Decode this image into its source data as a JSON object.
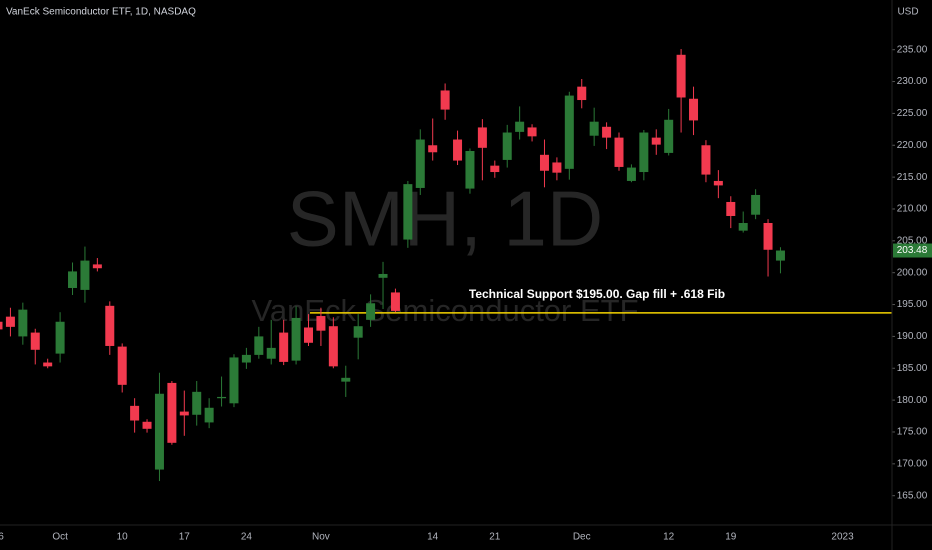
{
  "chart_data": {
    "type": "candlestick",
    "title": "VanEck Semiconductor ETF, 1D, NASDAQ",
    "currency": "USD",
    "watermark": {
      "symbol": "SMH, 1D",
      "description": "VanEck Semiconductor ETF"
    },
    "categories": [
      "6",
      null,
      null,
      null,
      null,
      "Oct",
      null,
      null,
      null,
      null,
      "10",
      null,
      null,
      null,
      null,
      "17",
      null,
      null,
      null,
      null,
      "24",
      null,
      null,
      null,
      null,
      null,
      "Nov",
      null,
      null,
      null,
      null,
      null,
      null,
      null,
      null,
      "14",
      null,
      null,
      null,
      null,
      "21",
      null,
      null,
      null,
      null,
      null,
      null,
      "Dec",
      null,
      null,
      null,
      null,
      null,
      null,
      "12",
      null,
      null,
      null,
      null,
      "19",
      null,
      null,
      null,
      null,
      null,
      null,
      null,
      null,
      "2023"
    ],
    "open": [
      192.3,
      193.1,
      190,
      190.6,
      185.9,
      187.3,
      197.6,
      197.3,
      201.3,
      194.8,
      188.4,
      179.1,
      176.6,
      169.1,
      182.7,
      178.2,
      177.7,
      176.5,
      180.3,
      179.5,
      185.9,
      187.1,
      186.5,
      190.6,
      186.2,
      191.4,
      193.2,
      191.6,
      182.9,
      189.8,
      192.6,
      199.2,
      196.9,
      205.2,
      213.3,
      220,
      228.6,
      220.9,
      213.2,
      222.8,
      216.8,
      217.7,
      222.1,
      222.8,
      218.5,
      217.3,
      216.3,
      229.2,
      221.5,
      222.9,
      221.2,
      214.4,
      215.8,
      221.2,
      218.8,
      234.2,
      227.3,
      220,
      214.4,
      211.1,
      206.6,
      209.1,
      207.8,
      201.9,
      null,
      null,
      null,
      null,
      null
    ],
    "high": [
      193,
      194.5,
      195.3,
      191.2,
      186.5,
      193.8,
      201.6,
      204.1,
      202.3,
      195.5,
      188.9,
      180.3,
      177.0,
      184.3,
      183.0,
      181.5,
      183.0,
      180.3,
      183.7,
      187.2,
      188.2,
      191.5,
      192.6,
      192.6,
      194.7,
      193.5,
      194.5,
      193.0,
      185.4,
      193.5,
      196.6,
      201.7,
      197.5,
      214.4,
      222.5,
      224.2,
      229.7,
      222.3,
      219.5,
      224.1,
      217.6,
      223.2,
      226.1,
      223.3,
      220.9,
      218.1,
      228.4,
      230.4,
      225.9,
      223.6,
      222,
      217,
      222.4,
      222.5,
      225.7,
      235.1,
      229.2,
      220.8,
      216.1,
      212,
      209.6,
      213.1,
      208.4,
      204,
      null,
      null,
      null,
      null,
      null
    ],
    "low": [
      190.2,
      190,
      188.7,
      185.6,
      185.0,
      185.9,
      196.5,
      195.3,
      200.2,
      187.1,
      181.2,
      174.9,
      174.9,
      167.3,
      173.0,
      174.4,
      176.0,
      175.6,
      179,
      178.9,
      184.9,
      186.5,
      185.6,
      185.5,
      185.6,
      188.5,
      188.5,
      185.0,
      180.5,
      186.4,
      191.5,
      194.3,
      193.8,
      203.9,
      212.2,
      217.6,
      224,
      216.9,
      212.4,
      214.5,
      214.9,
      216.5,
      220.9,
      220.6,
      213.4,
      214.5,
      214.6,
      225.8,
      219.9,
      219.4,
      216,
      214.2,
      214.5,
      218.5,
      218.4,
      222,
      221.6,
      214.2,
      211.7,
      207,
      206.3,
      208.4,
      199.4,
      199.9,
      null,
      null,
      null,
      null,
      null
    ],
    "close": [
      191.1,
      191.5,
      194.2,
      187.9,
      185.3,
      192.3,
      200.2,
      201.9,
      200.7,
      188.5,
      182.4,
      176.8,
      175.5,
      181,
      173.3,
      177.6,
      181.3,
      178.8,
      180.5,
      186.7,
      187.1,
      190,
      188.2,
      186.0,
      192.9,
      189.0,
      190.9,
      185.3,
      183.5,
      191.6,
      195.2,
      199.8,
      194.0,
      213.9,
      220.9,
      218.9,
      225.6,
      217.6,
      219.1,
      219.6,
      215.8,
      222,
      223.7,
      221.4,
      216,
      215.7,
      227.8,
      227.1,
      223.7,
      221.2,
      216.6,
      216.5,
      222,
      220.1,
      224,
      227.5,
      223.9,
      215.4,
      213.7,
      208.9,
      207.8,
      212.2,
      203.6,
      203.48,
      null,
      null,
      null,
      null,
      null
    ],
    "up_color": "#2b7a37",
    "down_color": "#f23a4f",
    "ylim": [
      160.4,
      242.8
    ],
    "yticks": [
      {
        "value": 165,
        "label": "165.00"
      },
      {
        "value": 170,
        "label": "170.00"
      },
      {
        "value": 175,
        "label": "175.00"
      },
      {
        "value": 180,
        "label": "180.00"
      },
      {
        "value": 185,
        "label": "185.00"
      },
      {
        "value": 190,
        "label": "190.00"
      },
      {
        "value": 195,
        "label": "195.00"
      },
      {
        "value": 200,
        "label": "200.00"
      },
      {
        "value": 205,
        "label": "205.00"
      },
      {
        "value": 210,
        "label": "210.00"
      },
      {
        "value": 215,
        "label": "215.00"
      },
      {
        "value": 220,
        "label": "220.00"
      },
      {
        "value": 225,
        "label": "225.00"
      },
      {
        "value": 230,
        "label": "230.00"
      },
      {
        "value": 235,
        "label": "235.00"
      }
    ],
    "hline": {
      "value": 193.7,
      "color": "#f5d400",
      "text": "Technical Support $195.00. Gap fill + .618 Fib"
    }
  }
}
